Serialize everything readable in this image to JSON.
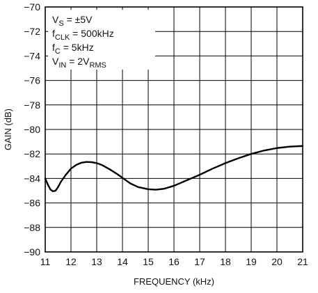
{
  "chart_data": {
    "type": "line",
    "xlabel": "FREQUENCY (kHz)",
    "ylabel": "GAIN (dB)",
    "xlim": [
      11,
      21
    ],
    "ylim": [
      -90,
      -70
    ],
    "x_ticks": [
      11,
      12,
      13,
      14,
      15,
      16,
      17,
      18,
      19,
      20,
      21
    ],
    "y_ticks": [
      -70,
      -72,
      -74,
      -76,
      -78,
      -80,
      -82,
      -84,
      -86,
      -88,
      -90
    ],
    "x_tick_labels": [
      "11",
      "12",
      "13",
      "14",
      "15",
      "16",
      "17",
      "18",
      "19",
      "20",
      "21"
    ],
    "y_tick_labels": [
      "−70",
      "−72",
      "−74",
      "−76",
      "−78",
      "−80",
      "−82",
      "−84",
      "−86",
      "−88",
      "−90"
    ],
    "grid": true,
    "series": [
      {
        "x": [
          11.0,
          11.1,
          11.2,
          11.3,
          11.4,
          11.5,
          11.6,
          11.8,
          12.0,
          12.2,
          12.4,
          12.6,
          12.8,
          13.0,
          13.2,
          13.5,
          13.8,
          14.0,
          14.3,
          14.6,
          15.0,
          15.3,
          15.6,
          16.0,
          16.5,
          17.0,
          17.5,
          18.0,
          18.5,
          19.0,
          19.5,
          20.0,
          20.5,
          21.0
        ],
        "y": [
          -84.0,
          -84.5,
          -84.9,
          -85.05,
          -85.0,
          -84.7,
          -84.3,
          -83.7,
          -83.2,
          -82.9,
          -82.72,
          -82.65,
          -82.67,
          -82.75,
          -82.9,
          -83.25,
          -83.65,
          -83.95,
          -84.4,
          -84.7,
          -84.88,
          -84.92,
          -84.85,
          -84.6,
          -84.15,
          -83.7,
          -83.2,
          -82.75,
          -82.35,
          -82.0,
          -81.72,
          -81.52,
          -81.4,
          -81.35
        ]
      }
    ],
    "annotations": {
      "vs": {
        "main": "V",
        "sub": "S",
        "rest": " = ±5V"
      },
      "fclk": {
        "main": "f",
        "sub": "CLK",
        "rest": " = 500kHz"
      },
      "fc": {
        "main": "f",
        "sub": "C",
        "rest": " = 5kHz"
      },
      "vin": {
        "main": "V",
        "sub": "IN",
        "rest": " = 2V",
        "sub2": "RMS"
      }
    },
    "colors": {
      "line": "#000000",
      "grid": "#000000",
      "background": "#ffffff"
    }
  }
}
